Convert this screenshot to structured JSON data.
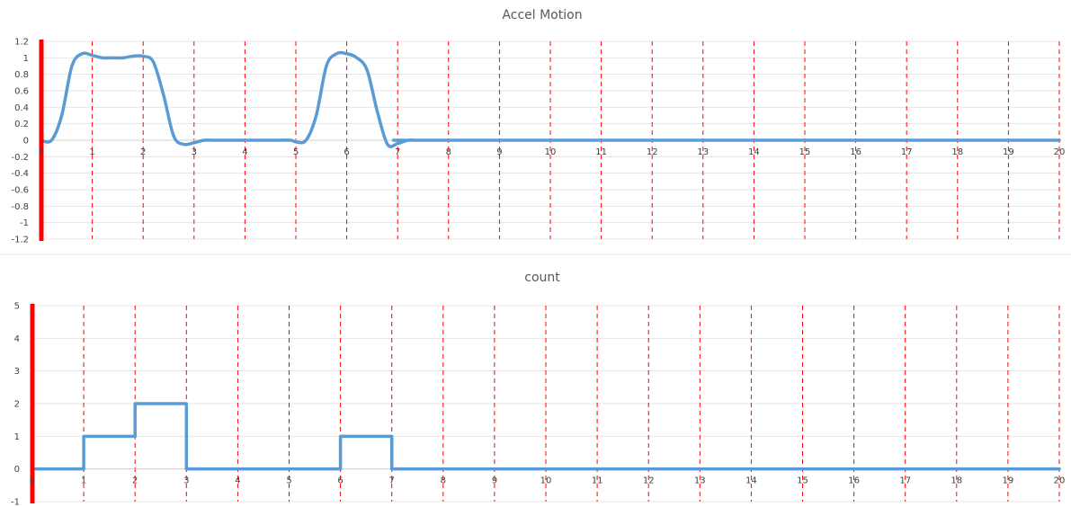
{
  "colors": {
    "series": "#5b9bd5",
    "vertical_gridlines": "#ff0000",
    "y_axis": "#ff0000",
    "title_text": "#595959"
  },
  "chart_data": [
    {
      "type": "line",
      "title": "Accel Motion",
      "xlim": [
        0,
        20
      ],
      "ylim": [
        -1.2,
        1.2
      ],
      "x_ticks": [
        0,
        1,
        2,
        3,
        4,
        5,
        6,
        7,
        8,
        9,
        10,
        11,
        12,
        13,
        14,
        15,
        16,
        17,
        18,
        19,
        20
      ],
      "y_ticks": [
        1.2,
        1,
        0.8,
        0.6,
        0.4,
        0.2,
        0,
        -0.2,
        -0.4,
        -0.6,
        -0.8,
        -1,
        -1.2
      ],
      "x_tick_labels": [
        "0",
        "1",
        "2",
        "3",
        "4",
        "5",
        "6",
        "7",
        "8",
        "9",
        "10",
        "11",
        "12",
        "13",
        "14",
        "15",
        "16",
        "17",
        "18",
        "19",
        "20"
      ],
      "y_tick_labels": [
        "1.2",
        "1",
        "0.8",
        "0.6",
        "0.4",
        "0.2",
        "0",
        "-0.2",
        "-0.4",
        "-0.6",
        "-0.8",
        "-1",
        "-1.2"
      ],
      "grid": {
        "vertical": "dashed red",
        "horizontal": "light gray"
      },
      "smooth": true,
      "series": [
        {
          "x": [
            0,
            0.2,
            0.4,
            0.6,
            0.8,
            1,
            1.2,
            1.4,
            1.6,
            1.8,
            2,
            2.2,
            2.4,
            2.6,
            2.8,
            3,
            3.2,
            3.4,
            4,
            4.6,
            4.9,
            5,
            5.2,
            5.4,
            5.6,
            5.8,
            6,
            6.2,
            6.4,
            6.6,
            6.8,
            7,
            7.2,
            7.4,
            8,
            20
          ],
          "y": [
            0,
            0,
            0.3,
            0.9,
            1.05,
            1.03,
            1,
            1,
            1,
            1.02,
            1.02,
            0.95,
            0.55,
            0.05,
            -0.05,
            -0.03,
            0,
            0,
            0,
            0,
            0,
            -0.02,
            0,
            0.3,
            0.9,
            1.05,
            1.05,
            1.0,
            0.85,
            0.35,
            -0.05,
            -0.04,
            0,
            0,
            0,
            0
          ]
        }
      ]
    },
    {
      "type": "line",
      "title": "count",
      "step": true,
      "xlim": [
        0,
        20
      ],
      "ylim": [
        -1,
        5
      ],
      "x_ticks": [
        0,
        1,
        2,
        3,
        4,
        5,
        6,
        7,
        8,
        9,
        10,
        11,
        12,
        13,
        14,
        15,
        16,
        17,
        18,
        19,
        20
      ],
      "y_ticks": [
        5,
        4,
        3,
        2,
        1,
        0,
        -1
      ],
      "x_tick_labels": [
        "0",
        "1",
        "2",
        "3",
        "4",
        "5",
        "6",
        "7",
        "8",
        "9",
        "10",
        "11",
        "12",
        "13",
        "14",
        "15",
        "16",
        "17",
        "18",
        "19",
        "20"
      ],
      "y_tick_labels": [
        "5",
        "4",
        "3",
        "2",
        "1",
        "0",
        "-1"
      ],
      "grid": {
        "vertical": "dashed red",
        "horizontal": "light gray"
      },
      "series": [
        {
          "x": [
            0,
            1,
            1,
            2,
            2,
            3,
            3,
            6,
            6,
            7,
            7,
            20
          ],
          "y": [
            0,
            0,
            1,
            1,
            2,
            2,
            0,
            0,
            1,
            1,
            0,
            0
          ]
        }
      ]
    }
  ]
}
